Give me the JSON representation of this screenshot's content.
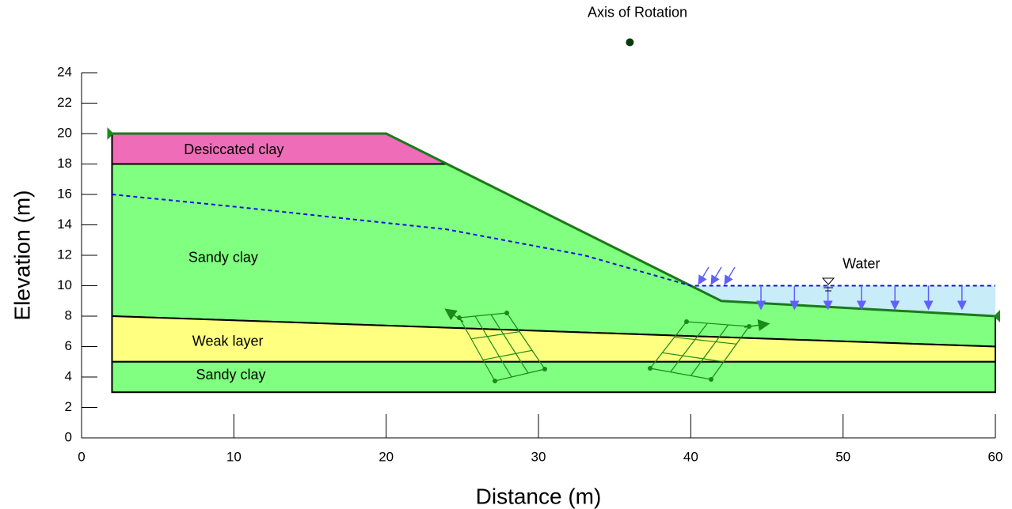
{
  "xlabel": "Distance (m)",
  "ylabel": "Elevation (m)",
  "xlim": [
    0,
    60
  ],
  "ylim": [
    0,
    24
  ],
  "xticks": [
    0,
    10,
    20,
    30,
    40,
    50,
    60
  ],
  "yticks": [
    0,
    2,
    4,
    6,
    8,
    10,
    12,
    14,
    16,
    18,
    20,
    22,
    24
  ],
  "regions": [
    {
      "label": "Desiccated clay",
      "color": "#ee6cb8",
      "points": [
        [
          2,
          20
        ],
        [
          20,
          20
        ],
        [
          24,
          18
        ],
        [
          2,
          18
        ]
      ],
      "label_at": [
        10,
        18.9
      ]
    },
    {
      "label": "Sandy clay",
      "color": "#80ff80",
      "points": [
        [
          2,
          18
        ],
        [
          24,
          18
        ],
        [
          40,
          10
        ],
        [
          42,
          9
        ],
        [
          60,
          8
        ],
        [
          60,
          6
        ],
        [
          2,
          8
        ]
      ],
      "label_at": [
        9.3,
        11.8
      ]
    },
    {
      "label": "Weak layer",
      "color": "#ffff80",
      "points": [
        [
          2,
          8
        ],
        [
          60,
          6
        ],
        [
          60,
          5
        ],
        [
          2,
          5
        ]
      ],
      "label_at": [
        9.6,
        6.3
      ]
    },
    {
      "label": "Sandy clay",
      "color": "#80ff80",
      "points": [
        [
          2,
          5
        ],
        [
          60,
          5
        ],
        [
          60,
          3
        ],
        [
          2,
          3
        ]
      ],
      "label_at": [
        9.8,
        4.1
      ]
    }
  ],
  "water": {
    "label": "Water",
    "color": "#c8ecf8",
    "points": [
      [
        40,
        10
      ],
      [
        60,
        10
      ],
      [
        60,
        8
      ],
      [
        42,
        9
      ]
    ],
    "label_at": [
      51.2,
      11.4
    ]
  },
  "ground_surface": [
    [
      2,
      20
    ],
    [
      20,
      20
    ],
    [
      24,
      18
    ],
    [
      40,
      10
    ],
    [
      42,
      9
    ],
    [
      60,
      8
    ]
  ],
  "piezometric_line": [
    [
      2,
      16
    ],
    [
      10,
      15.2
    ],
    [
      24,
      13.7
    ],
    [
      33,
      12
    ],
    [
      40,
      10
    ],
    [
      60,
      10
    ]
  ],
  "axis_of_rotation": {
    "label": "Axis of Rotation",
    "point": [
      36,
      26
    ],
    "label_at": [
      36.5,
      27.9
    ]
  }
}
